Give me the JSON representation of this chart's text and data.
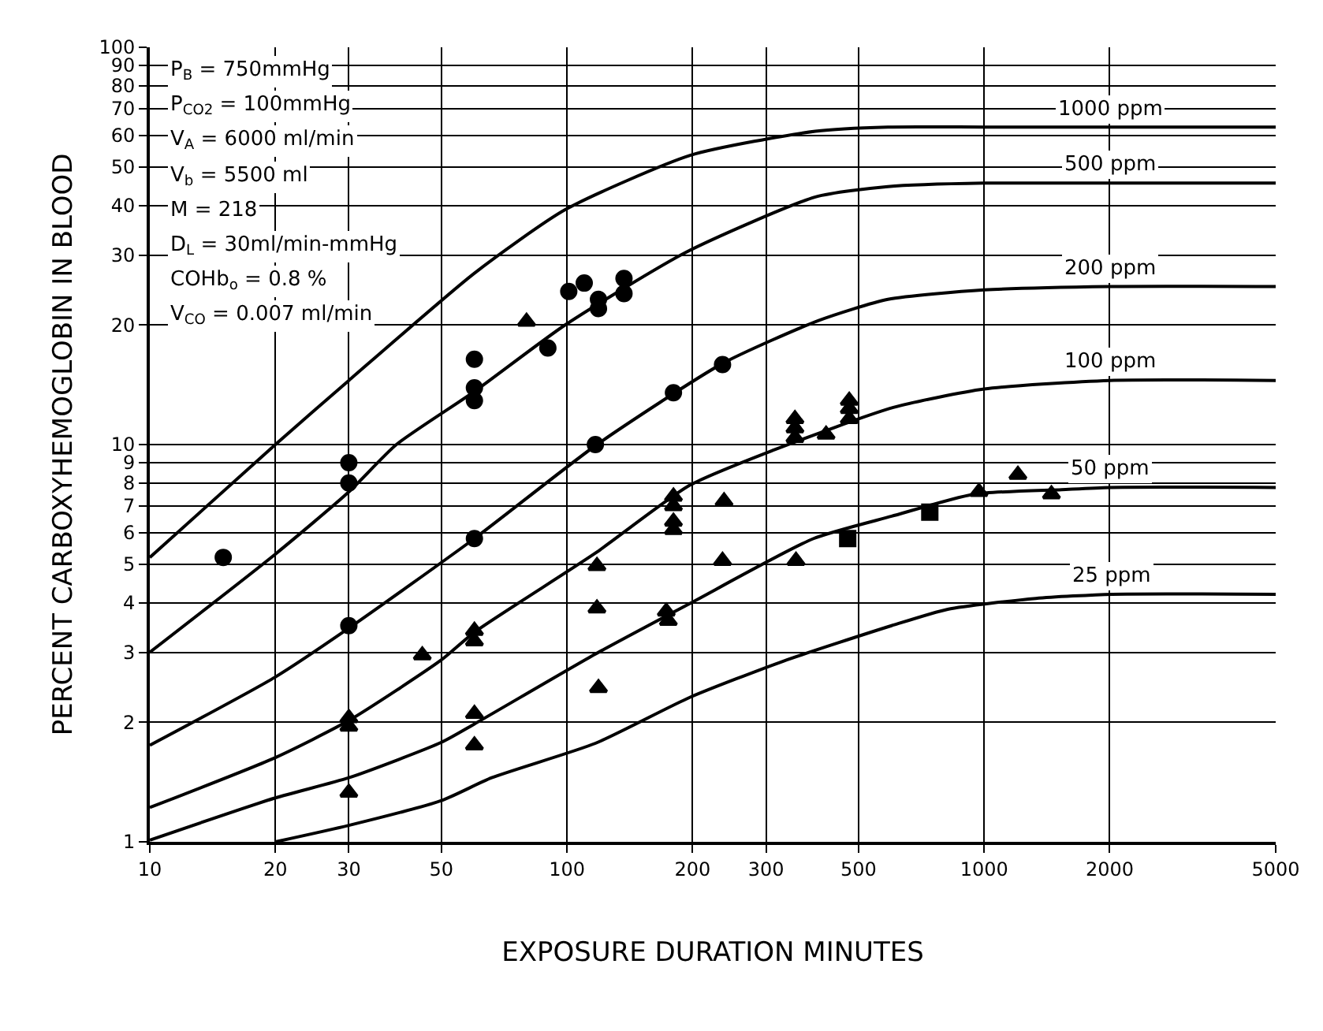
{
  "chart_data": {
    "type": "line",
    "xlabel": "EXPOSURE DURATION MINUTES",
    "ylabel": "PERCENT CARBOXYHEMOGLOBIN IN BLOOD",
    "log": "xy",
    "grid": true,
    "legend": false,
    "line_style": "solid",
    "xlim": [
      10,
      5000
    ],
    "xticks": [
      10,
      20,
      30,
      50,
      100,
      200,
      300,
      500,
      1000,
      2000,
      5000
    ],
    "ylim": [
      1,
      100
    ],
    "yticks": [
      1,
      2,
      3,
      4,
      5,
      6,
      7,
      8,
      9,
      10,
      20,
      30,
      40,
      50,
      60,
      70,
      80,
      90,
      100
    ],
    "series": [
      {
        "name": "1000 ppm",
        "marker": "none",
        "color": "#000000",
        "x": [
          10,
          20,
          30,
          60,
          99,
          198,
          394,
          588,
          1000,
          2000,
          5000
        ],
        "values": [
          5.2,
          10,
          14.5,
          27,
          39,
          53.5,
          61.5,
          63,
          63,
          63,
          63
        ]
      },
      {
        "name": "500 ppm",
        "marker": "none",
        "color": "#000000",
        "x": [
          10,
          20,
          30,
          39,
          60,
          99,
          193,
          394,
          588,
          1000,
          2000,
          5000
        ],
        "values": [
          3.0,
          5.3,
          7.6,
          10,
          13.6,
          20,
          30.5,
          42,
          44.6,
          45.5,
          45.5,
          45.5
        ]
      },
      {
        "name": "200 ppm",
        "marker": "none",
        "color": "#000000",
        "x": [
          10,
          20,
          30,
          60,
          118,
          236,
          400,
          588,
          1000,
          2000,
          5000
        ],
        "values": [
          1.75,
          2.6,
          3.45,
          5.8,
          10,
          16,
          20.5,
          23.2,
          24.5,
          25,
          25
        ]
      },
      {
        "name": "100 ppm",
        "marker": "none",
        "color": "#000000",
        "x": [
          10,
          20,
          30,
          50,
          60,
          117,
          197,
          314,
          606,
          1000,
          2000,
          5000
        ],
        "values": [
          1.22,
          1.63,
          2.02,
          2.87,
          3.37,
          5.33,
          7.9,
          9.7,
          12.4,
          13.8,
          14.5,
          14.5
        ]
      },
      {
        "name": "50 ppm",
        "marker": "none",
        "color": "#000000",
        "x": [
          10,
          20,
          30,
          50,
          60,
          117,
          197,
          390,
          600,
          945,
          1535,
          2000,
          5000
        ],
        "values": [
          1.01,
          1.29,
          1.45,
          1.78,
          1.98,
          2.97,
          3.98,
          5.8,
          6.6,
          7.5,
          7.7,
          7.8,
          7.8
        ]
      },
      {
        "name": "25 ppm",
        "marker": "none",
        "color": "#000000",
        "x": [
          20,
          30,
          50,
          66,
          117,
          197,
          330,
          600,
          818,
          1330,
          2030,
          5000
        ],
        "values": [
          1.0,
          1.1,
          1.27,
          1.45,
          1.77,
          2.31,
          2.85,
          3.5,
          3.85,
          4.1,
          4.2,
          4.2
        ]
      },
      {
        "type": "scatter",
        "marker": "circle",
        "color": "#000000",
        "x": [
          15,
          30,
          30,
          60,
          60,
          60,
          90,
          101,
          110,
          119,
          119,
          137,
          137
        ],
        "values": [
          5.2,
          9.0,
          8.0,
          16.4,
          13.9,
          12.9,
          17.5,
          24.3,
          25.5,
          23.2,
          22.0,
          26.2,
          24.0
        ]
      },
      {
        "type": "scatter",
        "marker": "circle",
        "color": "#000000",
        "x": [
          30,
          60,
          117,
          180,
          236
        ],
        "values": [
          3.5,
          5.8,
          10,
          13.5,
          15.9
        ]
      },
      {
        "type": "scatter",
        "marker": "triangle",
        "color": "#000000",
        "x": [
          30,
          30,
          30,
          45,
          60,
          60,
          80,
          118,
          118,
          180,
          180,
          180,
          180,
          238,
          352,
          352,
          352,
          418,
          475,
          475,
          475
        ],
        "values": [
          2.05,
          1.95,
          1.33,
          2.95,
          3.4,
          3.2,
          20.4,
          4.95,
          3.87,
          7.4,
          7.0,
          6.4,
          6.1,
          7.2,
          11.6,
          11.0,
          10.4,
          10.6,
          12.9,
          12.3,
          11.6
        ]
      },
      {
        "type": "scatter",
        "marker": "triangle",
        "color": "#000000",
        "x": [
          60,
          60,
          119,
          173,
          175,
          236,
          354,
          972,
          1205,
          1450
        ],
        "values": [
          2.1,
          1.75,
          2.44,
          3.8,
          3.6,
          5.1,
          5.1,
          7.6,
          8.4,
          7.5
        ]
      },
      {
        "type": "scatter",
        "marker": "square",
        "color": "#000000",
        "x": [
          471,
          741
        ],
        "values": [
          5.8,
          6.76
        ]
      }
    ],
    "annotations": [
      "P$_{B}$ = 750mmHg",
      "P$_{CO2}$ = 100mmHg",
      "V$_{A}$ = 6000 ml/min",
      "V$_{b}$ = 5500 ml",
      "M = 218",
      "D$_{L}$ = 30ml/min-mmHg",
      "COHb$_{o}$ = 0.8 %",
      "V$_{CO}$ = 0.007 ml/min"
    ]
  }
}
